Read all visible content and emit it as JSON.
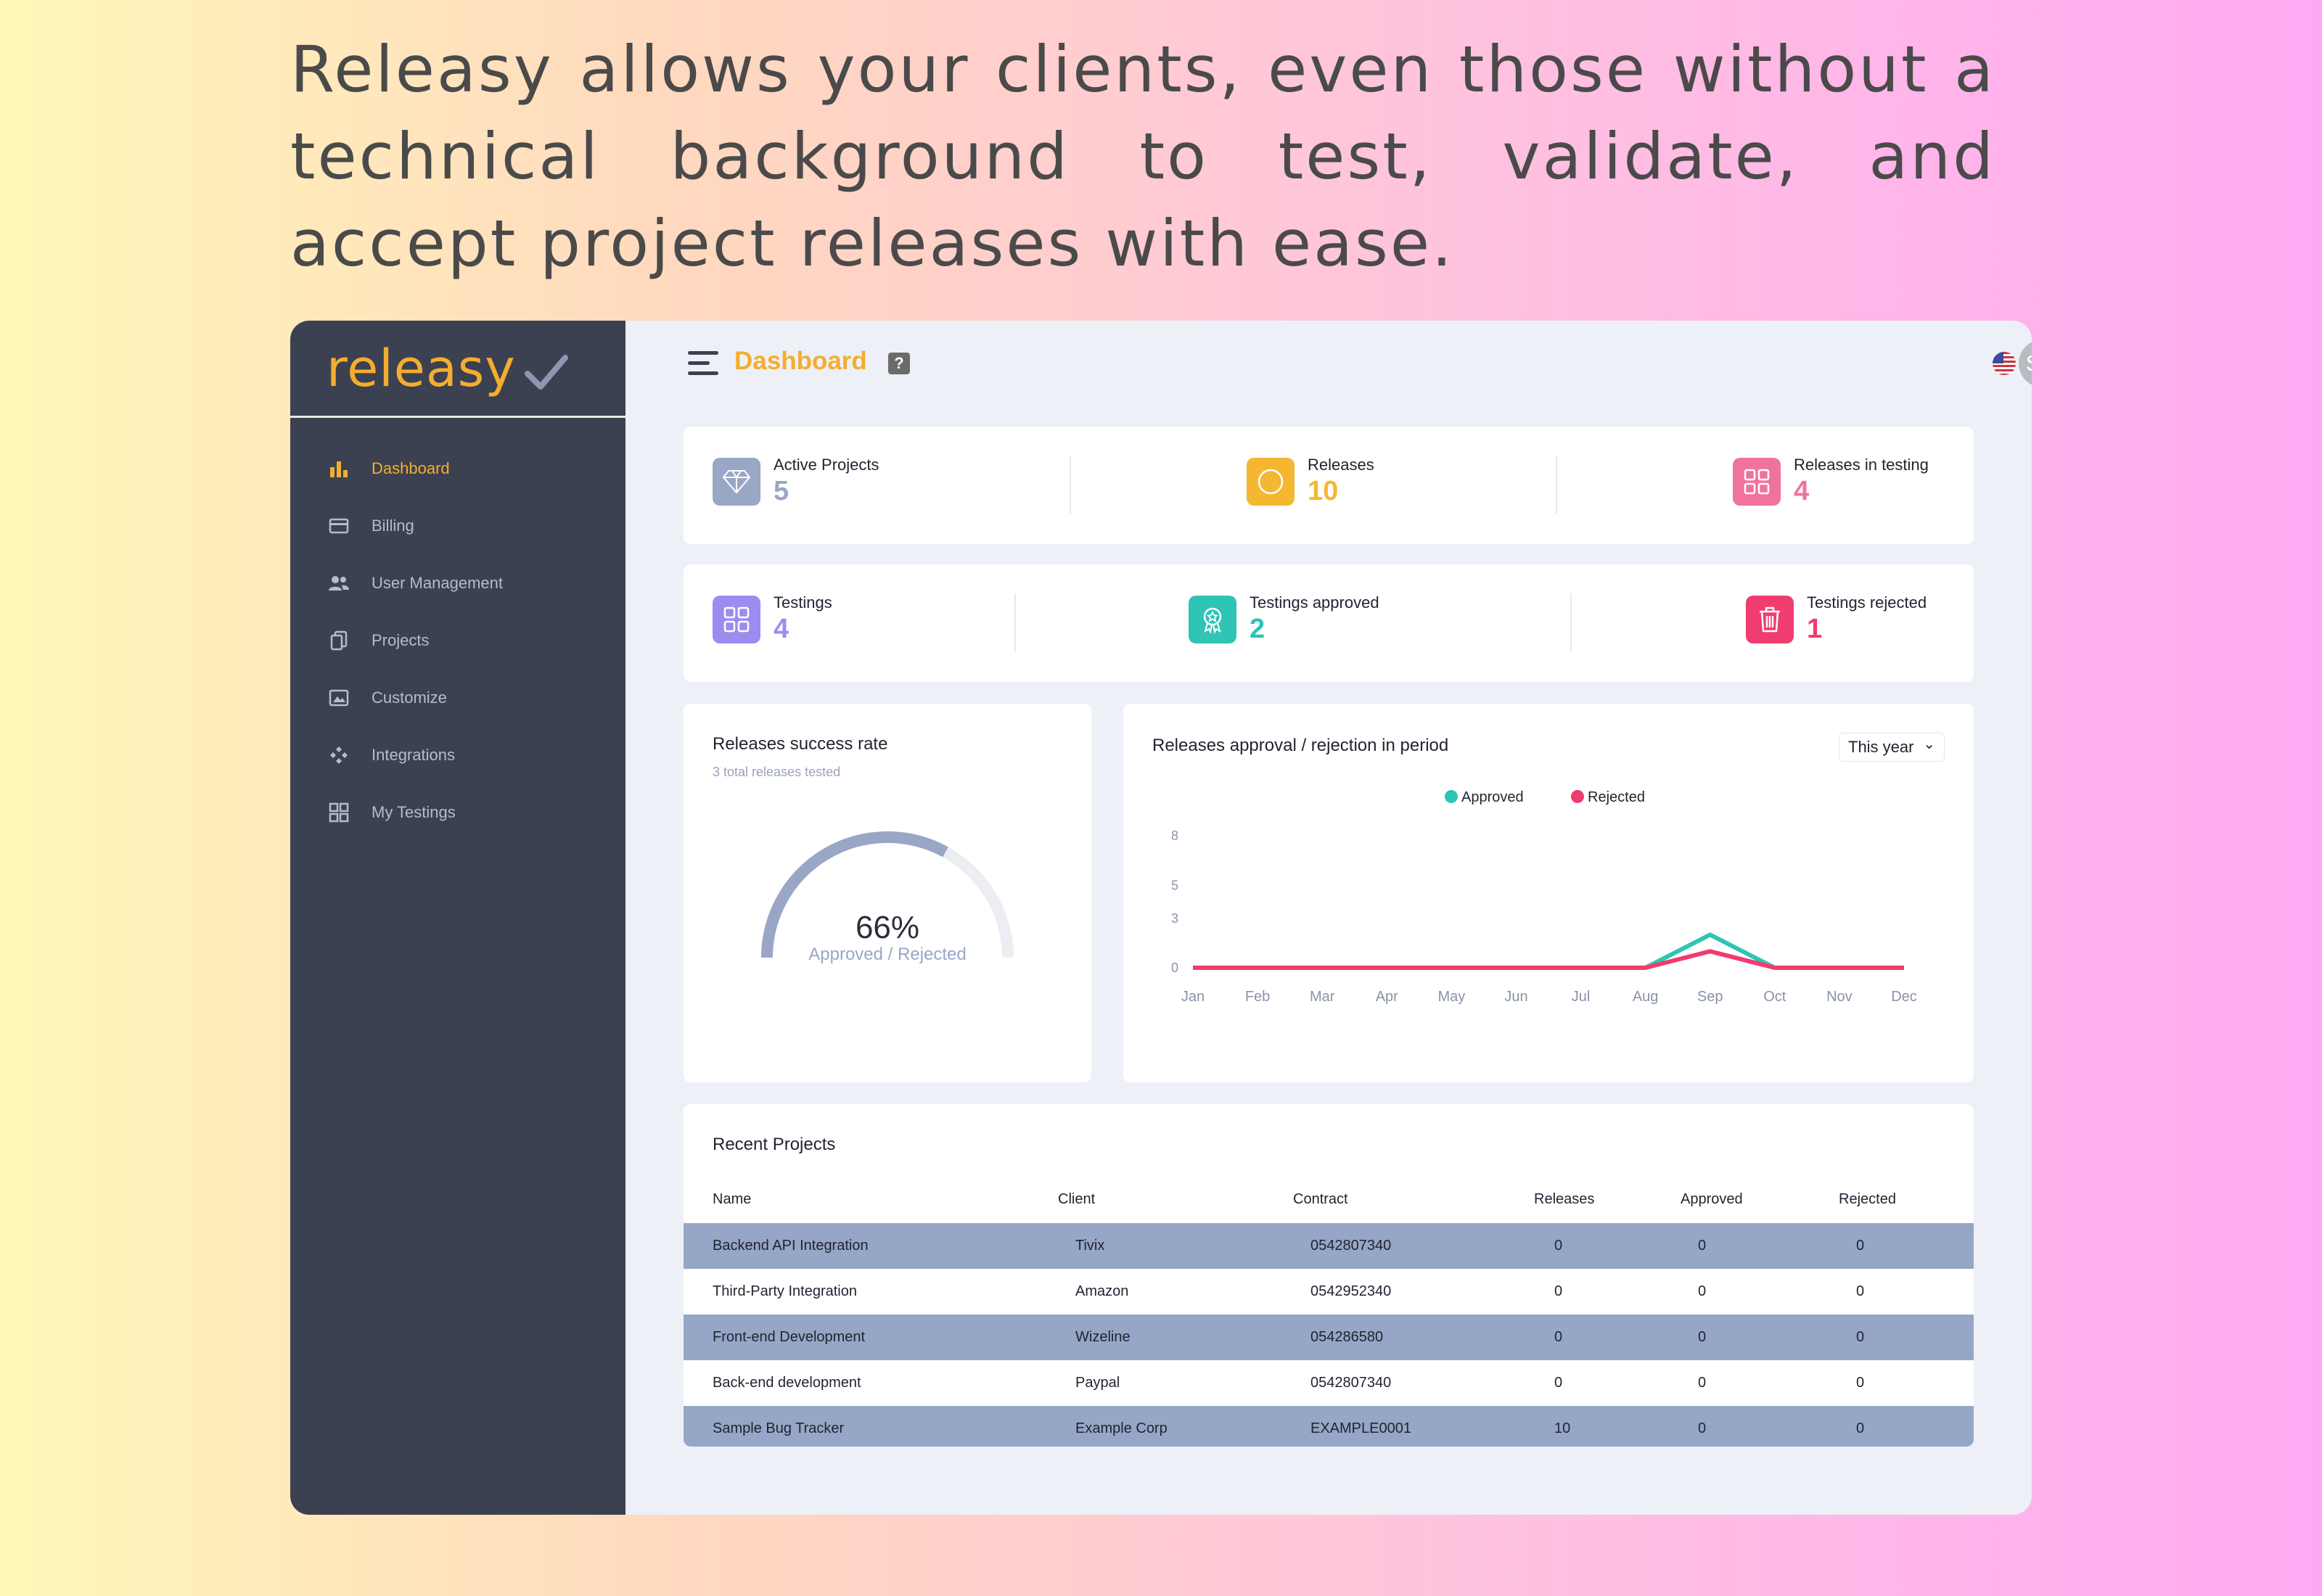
{
  "headline": "Releasy allows your clients, even those without a technical background to test, validate, and accept project releases with ease.",
  "sidebar": {
    "logo": "releasy",
    "items": [
      {
        "label": "Dashboard",
        "icon": "bar-chart-icon",
        "active": true
      },
      {
        "label": "Billing",
        "icon": "billing-card-icon",
        "active": false
      },
      {
        "label": "User Management",
        "icon": "users-icon",
        "active": false
      },
      {
        "label": "Projects",
        "icon": "documents-icon",
        "active": false
      },
      {
        "label": "Customize",
        "icon": "image-gallery-icon",
        "active": false
      },
      {
        "label": "Integrations",
        "icon": "integrations-icon",
        "active": false
      },
      {
        "label": "My Testings",
        "icon": "grid-icon",
        "active": false
      }
    ]
  },
  "header": {
    "title": "Dashboard",
    "help": "?",
    "avatar_initials": "SM"
  },
  "stats_row1": [
    {
      "label": "Active Projects",
      "value": "5",
      "icon": "diamond-icon",
      "color": "#9aa6c6"
    },
    {
      "label": "Releases",
      "value": "10",
      "icon": "circle-icon",
      "color": "#f5b731"
    },
    {
      "label": "Releases in testing",
      "value": "4",
      "icon": "grid-icon",
      "color": "#f0739c"
    }
  ],
  "stats_row2": [
    {
      "label": "Testings",
      "value": "4",
      "icon": "grid-icon",
      "color": "#9b8cf0"
    },
    {
      "label": "Testings approved",
      "value": "2",
      "icon": "award-icon",
      "color": "#2ec4b6"
    },
    {
      "label": "Testings rejected",
      "value": "1",
      "icon": "trash-icon",
      "color": "#f03c6f"
    }
  ],
  "success_rate": {
    "title": "Releases success rate",
    "subtitle": "3 total releases tested",
    "percent_label": "66%",
    "percent": 66,
    "caption": "Approved / Rejected"
  },
  "approval_chart": {
    "title": "Releases approval / rejection in period",
    "period": "This year"
  },
  "chart_data": {
    "type": "line",
    "title": "Releases approval / rejection in period",
    "categories": [
      "Jan",
      "Feb",
      "Mar",
      "Apr",
      "May",
      "Jun",
      "Jul",
      "Aug",
      "Sep",
      "Oct",
      "Nov",
      "Dec"
    ],
    "yticks": [
      "0",
      "3",
      "5",
      "8"
    ],
    "ylim": [
      0,
      8
    ],
    "legend_position": "top-center",
    "series": [
      {
        "name": "Approved",
        "color": "#2ec4b6",
        "values": [
          0,
          0,
          0,
          0,
          0,
          0,
          0,
          0,
          2,
          0,
          0,
          0
        ]
      },
      {
        "name": "Rejected",
        "color": "#f03c6f",
        "values": [
          0,
          0,
          0,
          0,
          0,
          0,
          0,
          0,
          1,
          0,
          0,
          0
        ]
      }
    ]
  },
  "recent_projects": {
    "title": "Recent Projects",
    "columns": [
      "Name",
      "Client",
      "Contract",
      "Releases",
      "Approved",
      "Rejected"
    ],
    "rows": [
      [
        "Backend API Integration",
        "Tivix",
        "0542807340",
        "0",
        "0",
        "0"
      ],
      [
        "Third-Party Integration",
        "Amazon",
        "0542952340",
        "0",
        "0",
        "0"
      ],
      [
        "Front-end Development",
        "Wizeline",
        "054286580",
        "0",
        "0",
        "0"
      ],
      [
        "Back-end development",
        "Paypal",
        "0542807340",
        "0",
        "0",
        "0"
      ],
      [
        "Sample Bug Tracker",
        "Example Corp",
        "EXAMPLE0001",
        "10",
        "0",
        "0"
      ]
    ]
  },
  "colors": {
    "accent": "#f5ad2e",
    "sidebar": "#3b4150",
    "approved": "#2ec4b6",
    "rejected": "#f03c6f",
    "row_highlight": "#96a6c6"
  }
}
